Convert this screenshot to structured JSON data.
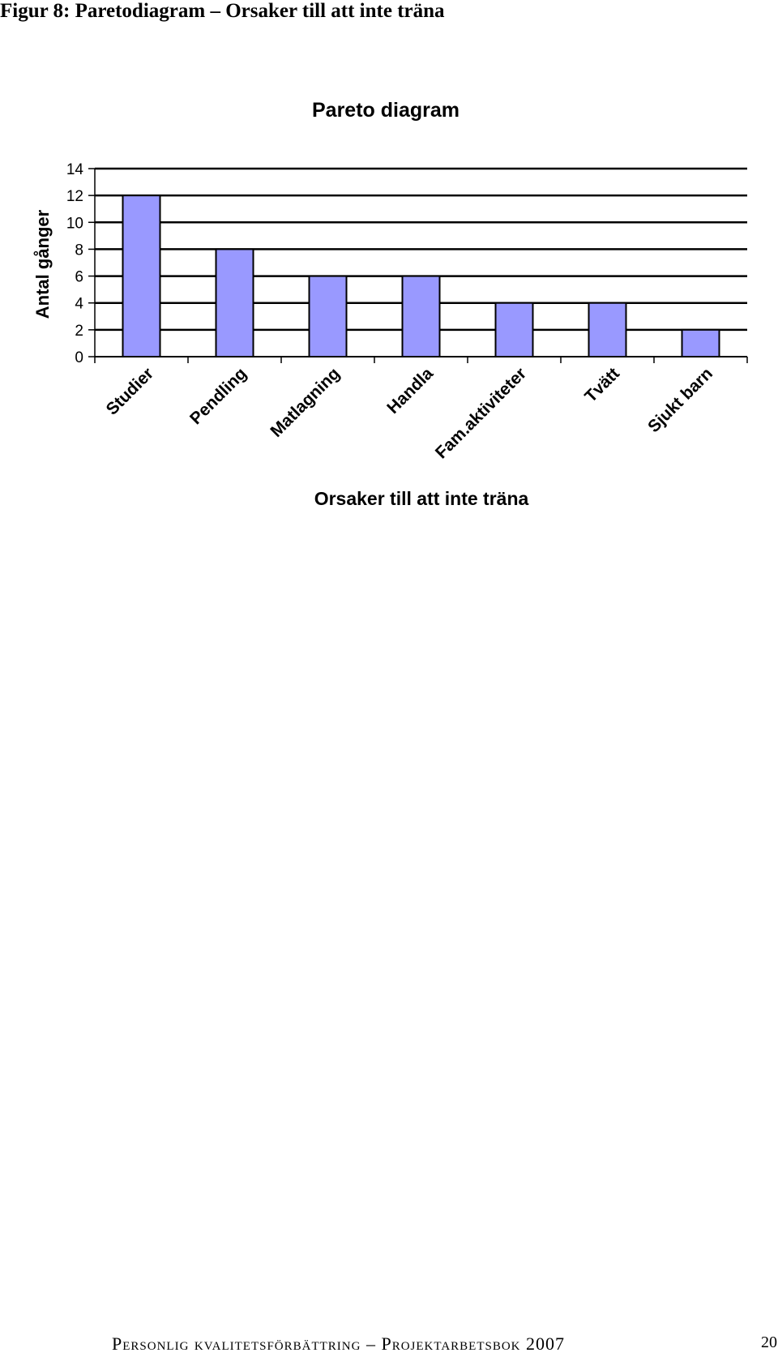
{
  "figure_caption": "Figur 8: Paretodiagram – Orsaker till att inte träna",
  "colors": {
    "bar_fill": "#9999ff",
    "bar_stroke": "#000000",
    "grid": "#000000"
  },
  "chart_data": {
    "type": "bar",
    "title": "Pareto diagram",
    "xlabel": "Orsaker till att inte träna",
    "ylabel": "Antal gånger",
    "categories": [
      "Studier",
      "Pendling",
      "Matlagning",
      "Handla",
      "Fam.aktiviteter",
      "Tvätt",
      "Sjukt barn"
    ],
    "values": [
      12,
      8,
      6,
      6,
      4,
      4,
      2
    ],
    "ylim": [
      0,
      14
    ],
    "yticks": [
      "0",
      "2",
      "4",
      "6",
      "8",
      "10",
      "12",
      "14"
    ],
    "grid": true,
    "legend": "none"
  },
  "footer": {
    "text": "Personlig kvalitetsförbättring – Projektarbetsbok 2007",
    "page_number": "20"
  }
}
